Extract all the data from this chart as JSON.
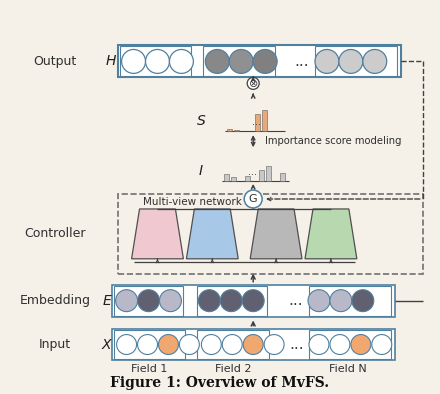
{
  "bg_color": "#f5f0e8",
  "title": "Figure 1: Overview of MvFS.",
  "labels": {
    "output": "Output",
    "embedding": "Embedding",
    "input": "Input",
    "controller": "Controller",
    "multiview": "Multi-view network",
    "importance": "Importance score modeling",
    "field1": "Field 1",
    "field2": "Field 2",
    "fieldN": "Field N"
  },
  "trapezoid_colors": [
    "#f0c8d0",
    "#a8c8e8",
    "#b8b8b8",
    "#b8d8b0"
  ],
  "bar_color_s": "#e8a878",
  "bar_color_i": "#c8c8c8",
  "circle_white": "#ffffff",
  "circle_dark": "#888888",
  "circle_mid": "#aaaaaa",
  "circle_light": "#cccccc",
  "embed_light": "#b8b8c8",
  "embed_dark": "#606070",
  "input_orange": "#f0a870",
  "arrow_color": "#404040",
  "box_edge": "#5080a0",
  "text_color": "#202020"
}
